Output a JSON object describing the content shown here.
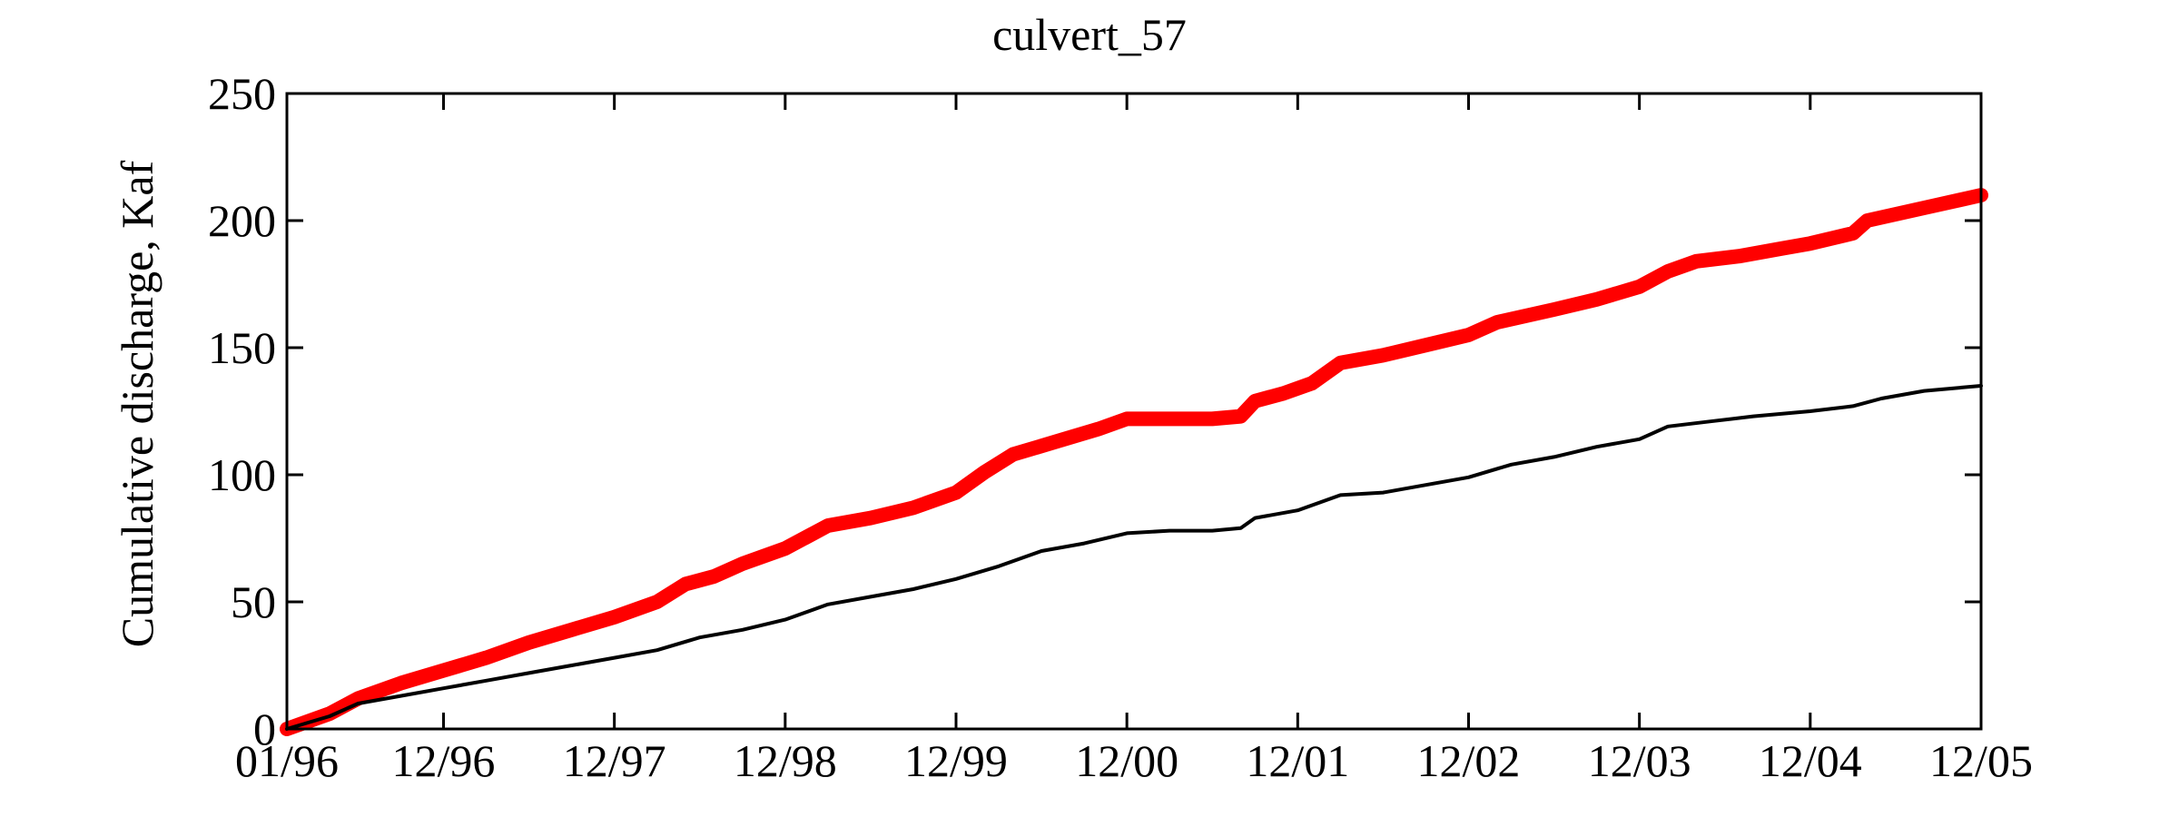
{
  "chart_data": {
    "type": "line",
    "title": "culvert_57",
    "xlabel": "",
    "ylabel": "Cumulative discharge, Kaf",
    "ylim": [
      0,
      250
    ],
    "yticks": [
      0,
      50,
      100,
      150,
      200,
      250
    ],
    "xlim": [
      "1996-01",
      "2005-12"
    ],
    "xticks": [
      {
        "value": "1996-01",
        "label": "01/96"
      },
      {
        "value": "1996-12",
        "label": "12/96"
      },
      {
        "value": "1997-12",
        "label": "12/97"
      },
      {
        "value": "1998-12",
        "label": "12/98"
      },
      {
        "value": "1999-12",
        "label": "12/99"
      },
      {
        "value": "2000-12",
        "label": "12/00"
      },
      {
        "value": "2001-12",
        "label": "12/01"
      },
      {
        "value": "2002-12",
        "label": "12/02"
      },
      {
        "value": "2003-12",
        "label": "12/03"
      },
      {
        "value": "2004-12",
        "label": "12/04"
      },
      {
        "value": "2005-12",
        "label": "12/05"
      }
    ],
    "grid": false,
    "legend": "none",
    "series": [
      {
        "color": "#ff0000",
        "line_style": "thick",
        "points": [
          [
            "1996-01",
            0
          ],
          [
            "1996-04",
            6
          ],
          [
            "1996-06",
            12
          ],
          [
            "1996-09",
            18
          ],
          [
            "1996-12",
            23
          ],
          [
            "1997-03",
            28
          ],
          [
            "1997-06",
            34
          ],
          [
            "1997-09",
            39
          ],
          [
            "1997-12",
            44
          ],
          [
            "1998-03",
            50
          ],
          [
            "1998-05",
            57
          ],
          [
            "1998-07",
            60
          ],
          [
            "1998-09",
            65
          ],
          [
            "1998-12",
            71
          ],
          [
            "1999-02",
            77
          ],
          [
            "1999-03",
            80
          ],
          [
            "1999-06",
            83
          ],
          [
            "1999-09",
            87
          ],
          [
            "1999-12",
            93
          ],
          [
            "2000-02",
            101
          ],
          [
            "2000-04",
            108
          ],
          [
            "2000-07",
            113
          ],
          [
            "2000-10",
            118
          ],
          [
            "2000-12",
            122
          ],
          [
            "2001-02",
            122
          ],
          [
            "2001-06",
            122
          ],
          [
            "2001-08",
            123
          ],
          [
            "2001-09",
            129
          ],
          [
            "2001-11",
            132
          ],
          [
            "2002-01",
            136
          ],
          [
            "2002-03",
            144
          ],
          [
            "2002-06",
            147
          ],
          [
            "2002-09",
            151
          ],
          [
            "2002-12",
            155
          ],
          [
            "2003-02",
            160
          ],
          [
            "2003-06",
            165
          ],
          [
            "2003-09",
            169
          ],
          [
            "2003-12",
            174
          ],
          [
            "2004-02",
            180
          ],
          [
            "2004-04",
            184
          ],
          [
            "2004-07",
            186
          ],
          [
            "2004-10",
            189
          ],
          [
            "2004-12",
            191
          ],
          [
            "2005-03",
            195
          ],
          [
            "2005-04",
            200
          ],
          [
            "2005-08",
            205
          ],
          [
            "2005-12",
            210
          ]
        ]
      },
      {
        "color": "#000000",
        "line_style": "thin",
        "points": [
          [
            "1996-01",
            0
          ],
          [
            "1996-04",
            5
          ],
          [
            "1996-06",
            10
          ],
          [
            "1996-09",
            13
          ],
          [
            "1996-12",
            16
          ],
          [
            "1997-03",
            19
          ],
          [
            "1997-06",
            22
          ],
          [
            "1997-09",
            25
          ],
          [
            "1997-12",
            28
          ],
          [
            "1998-03",
            31
          ],
          [
            "1998-06",
            36
          ],
          [
            "1998-09",
            39
          ],
          [
            "1998-12",
            43
          ],
          [
            "1999-03",
            49
          ],
          [
            "1999-06",
            52
          ],
          [
            "1999-09",
            55
          ],
          [
            "1999-12",
            59
          ],
          [
            "2000-03",
            64
          ],
          [
            "2000-06",
            70
          ],
          [
            "2000-09",
            73
          ],
          [
            "2000-12",
            77
          ],
          [
            "2001-03",
            78
          ],
          [
            "2001-06",
            78
          ],
          [
            "2001-08",
            79
          ],
          [
            "2001-09",
            83
          ],
          [
            "2001-12",
            86
          ],
          [
            "2002-03",
            92
          ],
          [
            "2002-06",
            93
          ],
          [
            "2002-09",
            96
          ],
          [
            "2002-12",
            99
          ],
          [
            "2003-03",
            104
          ],
          [
            "2003-06",
            107
          ],
          [
            "2003-09",
            111
          ],
          [
            "2003-12",
            114
          ],
          [
            "2004-02",
            119
          ],
          [
            "2004-05",
            121
          ],
          [
            "2004-08",
            123
          ],
          [
            "2004-12",
            125
          ],
          [
            "2005-03",
            127
          ],
          [
            "2005-05",
            130
          ],
          [
            "2005-08",
            133
          ],
          [
            "2005-12",
            135
          ]
        ]
      }
    ]
  }
}
